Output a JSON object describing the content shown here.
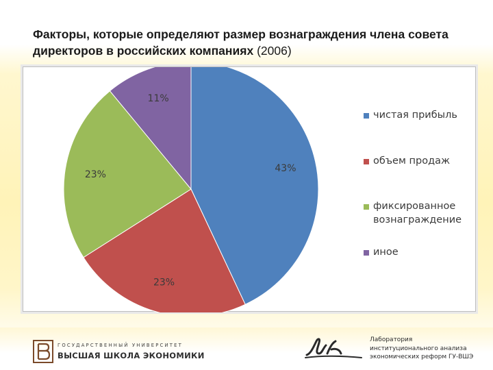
{
  "title": {
    "main": "Факторы, которые определяют размер вознаграждения члена совета директоров в российских компаниях",
    "year": "(2006)"
  },
  "chart_data": {
    "type": "pie",
    "categories": [
      "чистая прибыль",
      "объем продаж",
      "фиксированное вознаграждение",
      "иное"
    ],
    "values": [
      43,
      23,
      23,
      11
    ],
    "data_labels": [
      "43%",
      "23%",
      "23%",
      "11%"
    ],
    "colors": [
      "#4f81bd",
      "#c0504d",
      "#9bbb59",
      "#8064a2"
    ],
    "legend_position": "right",
    "start_angle_deg": 0,
    "direction": "clockwise"
  },
  "legend": {
    "items": [
      {
        "line1": "чистая прибыль",
        "line2": ""
      },
      {
        "line1": "объем продаж",
        "line2": ""
      },
      {
        "line1": "фиксированное",
        "line2": "вознаграждение"
      },
      {
        "line1": "иное",
        "line2": ""
      }
    ]
  },
  "footer": {
    "hse_line1": "ГОСУДАРСТВЕННЫЙ УНИВЕРСИТЕТ",
    "hse_line2": "ВЫСШАЯ ШКОЛА ЭКОНОМИКИ",
    "lab_line1": "Лаборатория",
    "lab_line2": "институционального анализа",
    "lab_line3": "экономических реформ ГУ-ВШЭ"
  }
}
